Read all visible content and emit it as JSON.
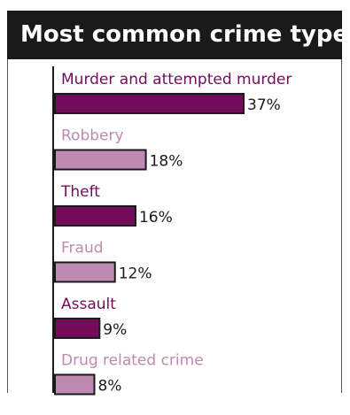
{
  "title": "Most common crime types",
  "colors": {
    "dark": "#730d5b",
    "light": "#bf8ab1",
    "background": "#ffffff",
    "title_background": "#1a1a1a",
    "axis": "#1a1a1a"
  },
  "chart_data": {
    "type": "bar",
    "orientation": "horizontal",
    "title": "Most common crime types",
    "categories": [
      "Murder and attempted murder",
      "Robbery",
      "Theft",
      "Fraud",
      "Assault",
      "Drug related crime"
    ],
    "values": [
      37,
      18,
      16,
      12,
      9,
      8
    ],
    "value_labels": [
      "37%",
      "18%",
      "16%",
      "12%",
      "9%",
      "8%"
    ],
    "bar_colors": [
      "#730d5b",
      "#bf8ab1",
      "#730d5b",
      "#bf8ab1",
      "#730d5b",
      "#bf8ab1"
    ],
    "xlim": [
      0,
      37
    ],
    "grid": false,
    "legend": "none",
    "xlabel": "",
    "ylabel": ""
  }
}
